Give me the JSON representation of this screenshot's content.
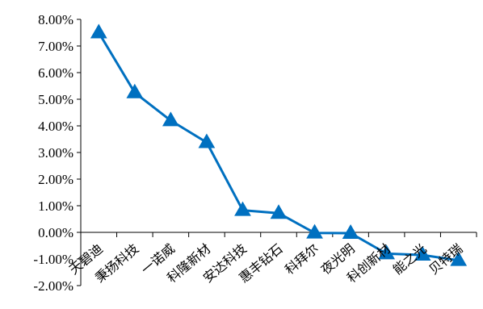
{
  "chart_data": {
    "type": "line",
    "title": "",
    "xlabel": "",
    "ylabel": "",
    "ylim": [
      -2.0,
      8.0
    ],
    "ytick_step": 1.0,
    "ytick_labels": [
      "8.00%",
      "7.00%",
      "6.00%",
      "5.00%",
      "4.00%",
      "3.00%",
      "2.00%",
      "1.00%",
      "0.00%",
      "-1.00%",
      "-2.00%"
    ],
    "grid": false,
    "legend": "none",
    "categories": [
      "天碧迪",
      "秉扬科技",
      "一诺威",
      "科隆新材",
      "安达科技",
      "惠丰钻石",
      "科拜尔",
      "夜光明",
      "科创新材",
      "能之光",
      "贝特瑞"
    ],
    "series": [
      {
        "name": "",
        "color": "#0070C0",
        "marker": "triangle",
        "values": [
          7.5,
          5.25,
          4.2,
          3.38,
          0.83,
          0.72,
          -0.02,
          -0.03,
          -0.8,
          -0.85,
          -1.05
        ]
      }
    ]
  }
}
